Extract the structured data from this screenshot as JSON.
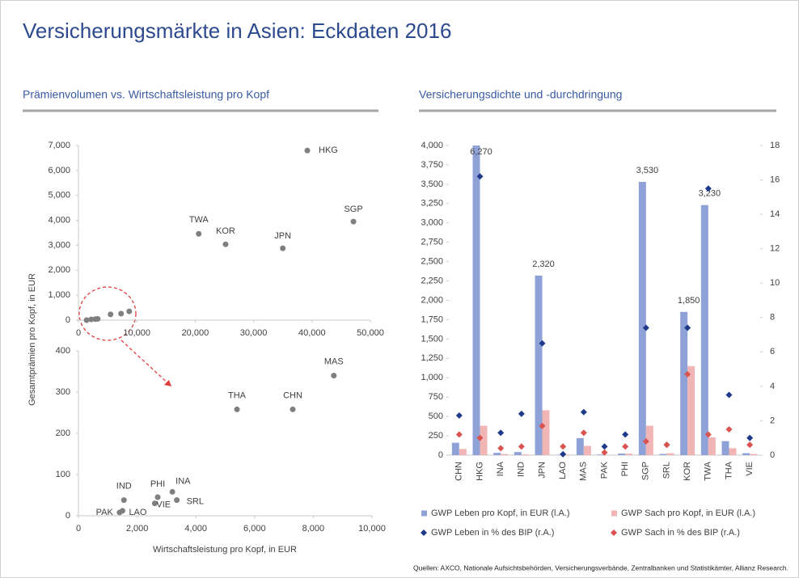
{
  "title": "Versicherungsmärkte in Asien: Eckdaten 2016",
  "source": "Quellen: AXCO, Nationale Aufsichtsbehörden, Versicherungsverbände, Zentralbanken und Statistikämter, Allianz Research.",
  "chart_data": [
    {
      "type": "scatter",
      "title": "Prämienvolumen vs. Wirtschaftsleistung pro Kopf",
      "y_label": "Gesamtprämien pro Kopf, in EUR",
      "color": "#7f7f7f",
      "labels": [
        "HKG",
        "SGP",
        "TWA",
        "KOR",
        "JPN",
        null,
        null,
        null,
        null,
        null,
        null,
        null
      ],
      "x": [
        39200,
        47100,
        20600,
        25200,
        35000,
        1400,
        2200,
        2900,
        3300,
        5500,
        7300,
        8700
      ],
      "y": [
        6800,
        3950,
        3460,
        3040,
        2880,
        0,
        30,
        40,
        50,
        230,
        260,
        350
      ],
      "xlim": [
        0,
        50000
      ],
      "ylim": [
        0,
        7000
      ],
      "xticks": [
        0,
        {
          "value": 10000,
          "label": "10,000"
        },
        {
          "value": 20000,
          "label": "20,000"
        },
        {
          "value": 30000,
          "label": "30,000"
        },
        {
          "value": 40000,
          "label": "40,000"
        },
        {
          "value": 50000,
          "label": "50,000"
        }
      ],
      "yticks": [
        0,
        {
          "value": 1000,
          "label": "1,000"
        },
        {
          "value": 2000,
          "label": "2,000"
        },
        {
          "value": 3000,
          "label": "3,000"
        },
        {
          "value": 4000,
          "label": "4,000"
        },
        {
          "value": 5000,
          "label": "5,000"
        },
        {
          "value": 6000,
          "label": "6,000"
        },
        {
          "value": 7000,
          "label": "7,000"
        }
      ]
    },
    {
      "type": "scatter",
      "x_label": "Wirtschaftsleistung pro Kopf, in EUR",
      "color": "#7f7f7f",
      "labels": [
        "MAS",
        "THA",
        "CHN",
        "INA",
        "PHI",
        "SRL",
        "IND",
        "VIE",
        "PAK",
        "LAO"
      ],
      "x": [
        8700,
        5400,
        7300,
        3200,
        2700,
        3350,
        1550,
        2600,
        1400,
        1500
      ],
      "y": [
        340,
        258,
        258,
        58,
        45,
        38,
        38,
        30,
        8,
        12
      ],
      "xlim": [
        0,
        10000
      ],
      "ylim": [
        0,
        400
      ],
      "xticks": [
        0,
        {
          "value": 2000,
          "label": "2,000"
        },
        {
          "value": 4000,
          "label": "4,000"
        },
        {
          "value": 6000,
          "label": "6,000"
        },
        {
          "value": 8000,
          "label": "8,000"
        },
        {
          "value": 10000,
          "label": "10,000"
        }
      ],
      "yticks": [
        0,
        100,
        200,
        300,
        400
      ]
    },
    {
      "type": "bar",
      "title": "Versicherungsdichte und -durchdringung",
      "categories": [
        "CHN",
        "HKG",
        "INA",
        "IND",
        "JPN",
        "LAO",
        "MAS",
        "PAK",
        "PHI",
        "SGP",
        "SRL",
        "KOR",
        "TWA",
        "THA",
        "VIE"
      ],
      "series": [
        {
          "name": "GWP Leben pro Kopf, in EUR (l.A.)",
          "color": "#8fa2d8",
          "values": [
            160,
            6270,
            30,
            40,
            2320,
            5,
            220,
            8,
            20,
            3530,
            15,
            1850,
            3230,
            180,
            25
          ],
          "value_labels": [
            null,
            "6,270",
            null,
            null,
            "2,320",
            null,
            null,
            null,
            null,
            "3,530",
            null,
            "1,850",
            "3,230",
            null,
            null
          ]
        },
        {
          "name": "GWP Sach pro Kopf, in EUR (l.A.)",
          "color": "#f2b5b5",
          "values": [
            80,
            380,
            15,
            10,
            580,
            8,
            120,
            3,
            20,
            380,
            25,
            1150,
            230,
            90,
            15
          ]
        },
        {
          "name": "GWP Leben in % des BIP (r.A.)",
          "color": "#1f3a8a",
          "axis": "y2",
          "values": [
            2.3,
            16.2,
            1.3,
            2.4,
            6.5,
            0.05,
            2.5,
            0.5,
            1.2,
            7.4,
            0.6,
            7.4,
            15.5,
            3.5,
            1.0
          ]
        },
        {
          "name": "GWP Sach in % des BIP (r.A.)",
          "color": "#d9534f",
          "axis": "y2",
          "values": [
            1.2,
            1.0,
            0.4,
            0.5,
            1.7,
            0.5,
            1.3,
            0.15,
            0.5,
            0.8,
            0.6,
            4.7,
            1.2,
            1.5,
            0.6
          ]
        }
      ],
      "ylim": [
        0,
        4000
      ],
      "yticks": [
        0,
        250,
        500,
        750,
        {
          "value": 1000,
          "label": "1,000"
        },
        {
          "value": 1250,
          "label": "1,250"
        },
        {
          "value": 1500,
          "label": "1,500"
        },
        {
          "value": 1750,
          "label": "1,750"
        },
        {
          "value": 2000,
          "label": "2,000"
        },
        {
          "value": 2250,
          "label": "2,250"
        },
        {
          "value": 2500,
          "label": "2,500"
        },
        {
          "value": 2750,
          "label": "2,750"
        },
        {
          "value": 3000,
          "label": "3,000"
        },
        {
          "value": 3250,
          "label": "3,250"
        },
        {
          "value": 3500,
          "label": "3,500"
        },
        {
          "value": 3750,
          "label": "3,750"
        },
        {
          "value": 4000,
          "label": "4,000"
        }
      ],
      "y2lim": [
        0,
        18
      ],
      "y2ticks": [
        0,
        2,
        4,
        6,
        8,
        10,
        12,
        14,
        16,
        18
      ]
    }
  ]
}
